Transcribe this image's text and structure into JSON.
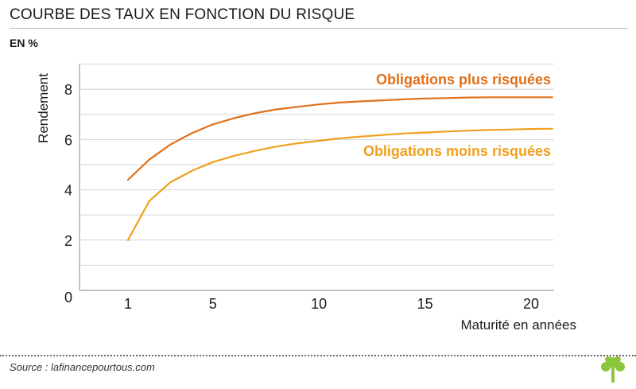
{
  "header": {
    "title": "COURBE DES TAUX EN FONCTION DU RISQUE",
    "unit": "EN %"
  },
  "footer": {
    "source": "Source : lafinancepourtous.com"
  },
  "logo": {
    "icon": "tree-icon",
    "color": "#8cc63f"
  },
  "chart_data": {
    "type": "line",
    "ylabel": "Rendement",
    "xlabel": "Maturité en années",
    "xlim": [
      1,
      21
    ],
    "ylim": [
      0,
      9
    ],
    "xticks": [
      1,
      5,
      10,
      15,
      20
    ],
    "yticks": [
      0,
      2,
      4,
      6,
      8
    ],
    "grid": true,
    "series": [
      {
        "name": "Obligations plus risquées",
        "color": "#e0701a",
        "x": [
          1,
          2,
          3,
          4,
          5,
          6,
          7,
          8,
          9,
          10,
          11,
          12,
          13,
          14,
          15,
          16,
          17,
          18,
          19,
          20,
          21
        ],
        "y": [
          4.4,
          5.2,
          5.8,
          6.25,
          6.6,
          6.85,
          7.05,
          7.2,
          7.3,
          7.4,
          7.47,
          7.52,
          7.56,
          7.6,
          7.63,
          7.65,
          7.67,
          7.68,
          7.68,
          7.68,
          7.68
        ]
      },
      {
        "name": "Obligations moins risquées",
        "color": "#f0a01e",
        "x": [
          1,
          2,
          3,
          4,
          5,
          6,
          7,
          8,
          9,
          10,
          11,
          12,
          13,
          14,
          15,
          16,
          17,
          18,
          19,
          20,
          21
        ],
        "y": [
          2.0,
          3.55,
          4.3,
          4.75,
          5.1,
          5.35,
          5.55,
          5.72,
          5.85,
          5.95,
          6.05,
          6.12,
          6.18,
          6.24,
          6.28,
          6.32,
          6.35,
          6.38,
          6.4,
          6.42,
          6.43
        ]
      }
    ]
  }
}
